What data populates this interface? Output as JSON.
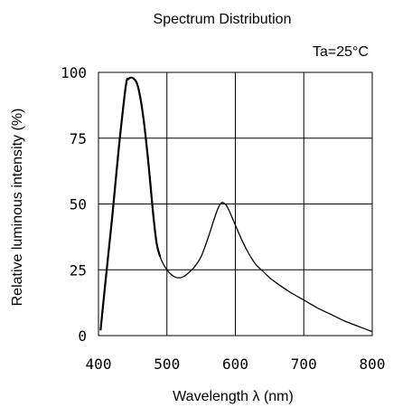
{
  "chart_data": {
    "type": "line",
    "title": "Spectrum Distribution",
    "annotation": "Ta=25°C",
    "xlabel": "Wavelength  λ (nm)",
    "ylabel": "Relative luminous intensity  (%)",
    "xlim": [
      400,
      800
    ],
    "ylim": [
      0,
      100
    ],
    "xticks": [
      "400",
      "500",
      "600",
      "700",
      "800"
    ],
    "yticks": [
      "0",
      "25",
      "50",
      "75",
      "100"
    ],
    "grid": true,
    "series": [
      {
        "x": [
          403,
          410,
          420,
          430,
          440,
          444,
          448,
          452,
          456,
          460,
          465,
          470,
          475,
          480,
          485,
          490,
          495,
          500,
          505,
          510,
          515,
          520,
          525,
          530,
          540,
          550,
          560,
          565,
          570,
          575,
          580,
          585,
          590,
          595,
          600,
          610,
          620,
          630,
          640,
          650,
          660,
          680,
          700,
          720,
          740,
          760,
          780,
          800
        ],
        "y": [
          2,
          20,
          45,
          72,
          95,
          97.5,
          98,
          97.5,
          96,
          92,
          84,
          73,
          60,
          46,
          35,
          30,
          27,
          25,
          23.5,
          22.5,
          22,
          22,
          22.5,
          23.5,
          26,
          30,
          37,
          41,
          45,
          48.5,
          50.5,
          50,
          48,
          45,
          42,
          36,
          31,
          27,
          24.5,
          22,
          20,
          16.5,
          13.5,
          10.5,
          8,
          5.5,
          3.5,
          1.5
        ]
      }
    ]
  }
}
